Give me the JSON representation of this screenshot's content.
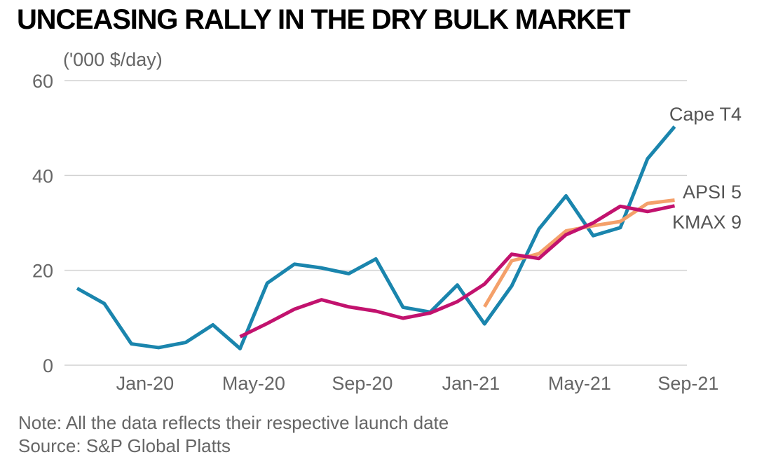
{
  "chart_data": {
    "type": "line",
    "title": "UNCEASING RALLY IN THE DRY BULK MARKET",
    "ylabel": "('000 $/day)",
    "xlabel": "",
    "ylim": [
      0,
      60
    ],
    "yticks": [
      0,
      20,
      40,
      60
    ],
    "grid": true,
    "x_tick_labels": [
      {
        "label": "Jan-20",
        "index": 2.5
      },
      {
        "label": "May-20",
        "index": 6.5
      },
      {
        "label": "Sep-20",
        "index": 10.5
      },
      {
        "label": "Jan-21",
        "index": 14.5
      },
      {
        "label": "May-21",
        "index": 18.5
      },
      {
        "label": "Sep-21",
        "index": 22.5
      }
    ],
    "series": [
      {
        "name": "Cape T4",
        "color": "#1a85ad",
        "start_index": 0,
        "values": [
          16.2,
          13,
          4.5,
          3.7,
          4.8,
          8.5,
          3.5,
          17.3,
          21.3,
          20.5,
          19.3,
          22.4,
          12.2,
          11.2,
          16.9,
          8.7,
          16.7,
          28.7,
          35.7,
          27.3,
          29,
          43.5,
          50.3
        ]
      },
      {
        "name": "APSI 5",
        "color": "#f4a06a",
        "start_index": 15,
        "values": [
          12.3,
          22,
          23.5,
          28.3,
          29.4,
          30.3,
          34.1,
          34.8
        ]
      },
      {
        "name": "KMAX 9",
        "color": "#c2126e",
        "start_index": 6,
        "values": [
          6,
          8.8,
          11.8,
          13.8,
          12.3,
          11.4,
          9.9,
          11,
          13.4,
          17.1,
          23.4,
          22.5,
          27.5,
          30,
          33.5,
          32.4,
          33.6
        ]
      }
    ],
    "series_labels": [
      "Cape T4",
      "APSI 5",
      "KMAX 9"
    ],
    "note": "Note: All the data reflects their respective launch date",
    "source": "Source: S&P Global Platts"
  }
}
